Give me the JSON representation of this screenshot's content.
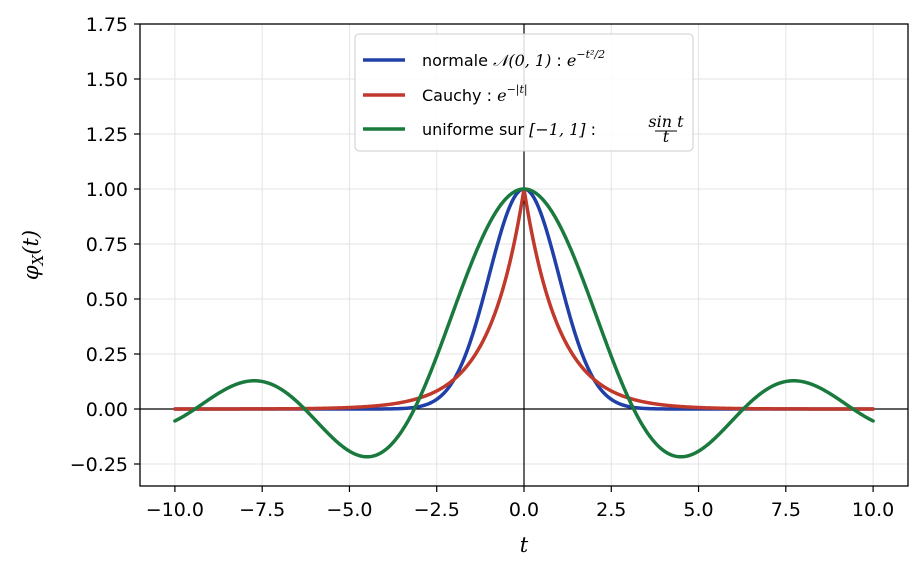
{
  "chart_data": {
    "type": "line",
    "xlabel": "t",
    "ylabel": "φ_X(t)",
    "xlim": [
      -11.0,
      11.0
    ],
    "ylim": [
      -0.35,
      1.75
    ],
    "grid": true,
    "legend_position": "upper-center",
    "x_ticks": [
      -10.0,
      -7.5,
      -5.0,
      -2.5,
      0.0,
      2.5,
      5.0,
      7.5,
      10.0
    ],
    "x_tick_labels": [
      "−10.0",
      "−7.5",
      "−5.0",
      "−2.5",
      "0.0",
      "2.5",
      "5.0",
      "7.5",
      "10.0"
    ],
    "y_ticks": [
      -0.25,
      0.0,
      0.25,
      0.5,
      0.75,
      1.0,
      1.25,
      1.5,
      1.75
    ],
    "y_tick_labels": [
      "−0.25",
      "0.00",
      "0.25",
      "0.50",
      "0.75",
      "1.00",
      "1.25",
      "1.50",
      "1.75"
    ],
    "x": [
      -10,
      -9.5,
      -9,
      -8.5,
      -8,
      -7.5,
      -7,
      -6.5,
      -6,
      -5.5,
      -5,
      -4.5,
      -4,
      -3.5,
      -3,
      -2.5,
      -2,
      -1.5,
      -1,
      -0.5,
      0,
      0.5,
      1,
      1.5,
      2,
      2.5,
      3,
      3.5,
      4,
      4.5,
      5,
      5.5,
      6,
      6.5,
      7,
      7.5,
      8,
      8.5,
      9,
      9.5,
      10
    ],
    "series": [
      {
        "name": "normale 𝒩(0,1) : e^{−t²/2}",
        "formula": "exp(-t^2/2)",
        "color": "#2040a8",
        "values": [
          0,
          0,
          0,
          0,
          0,
          0,
          0,
          0,
          0,
          0,
          4e-06,
          4e-05,
          0.00034,
          0.0022,
          0.0111,
          0.0439,
          0.1353,
          0.3247,
          0.6065,
          0.8825,
          1,
          0.8825,
          0.6065,
          0.3247,
          0.1353,
          0.0439,
          0.0111,
          0.0022,
          0.00034,
          4e-05,
          4e-06,
          0,
          0,
          0,
          0,
          0,
          0,
          0,
          0,
          0,
          0
        ]
      },
      {
        "name": "Cauchy : e^{−|t|}",
        "formula": "exp(-|t|)",
        "color": "#c0392b",
        "values": [
          5e-05,
          7e-05,
          0.00012,
          0.0002,
          0.00034,
          0.00055,
          0.0009,
          0.0015,
          0.0025,
          0.0041,
          0.0067,
          0.0111,
          0.0183,
          0.0302,
          0.0498,
          0.0821,
          0.1353,
          0.2231,
          0.3679,
          0.6065,
          1,
          0.6065,
          0.3679,
          0.2231,
          0.1353,
          0.0821,
          0.0498,
          0.0302,
          0.0183,
          0.0111,
          0.0067,
          0.0041,
          0.0025,
          0.0015,
          0.0009,
          0.00055,
          0.00034,
          0.0002,
          0.00012,
          7e-05,
          5e-05
        ]
      },
      {
        "name": "uniforme sur [−1,1] : sin t / t",
        "formula": "sin(t)/t",
        "color": "#1a7a3e",
        "values": [
          -0.0544,
          0.0079,
          0.0458,
          0.0941,
          0.1237,
          0.125,
          0.0939,
          0.0331,
          -0.0466,
          -0.1283,
          -0.1918,
          -0.2172,
          -0.1892,
          -0.1002,
          0.047,
          0.2394,
          0.4546,
          0.665,
          0.8415,
          0.9589,
          1,
          0.9589,
          0.8415,
          0.665,
          0.4546,
          0.2394,
          0.047,
          -0.1002,
          -0.1892,
          -0.2172,
          -0.1918,
          -0.1283,
          -0.0466,
          0.0331,
          0.0939,
          0.125,
          0.1237,
          0.0941,
          0.0458,
          0.0079,
          -0.0544
        ]
      }
    ]
  },
  "legend": [
    {
      "color": "#2040a8",
      "prefix": "normale ",
      "math": "𝒩(0, 1)",
      "sep": " : ",
      "base": "e",
      "sup": "−t²/2"
    },
    {
      "color": "#c0392b",
      "prefix": "Cauchy",
      "math": "",
      "sep": " : ",
      "base": "e",
      "sup": "−|t|"
    },
    {
      "color": "#1a7a3e",
      "prefix": "uniforme sur ",
      "math": "[−1, 1]",
      "sep": " : ",
      "frac_num": "sin t",
      "frac_den": "t"
    }
  ]
}
